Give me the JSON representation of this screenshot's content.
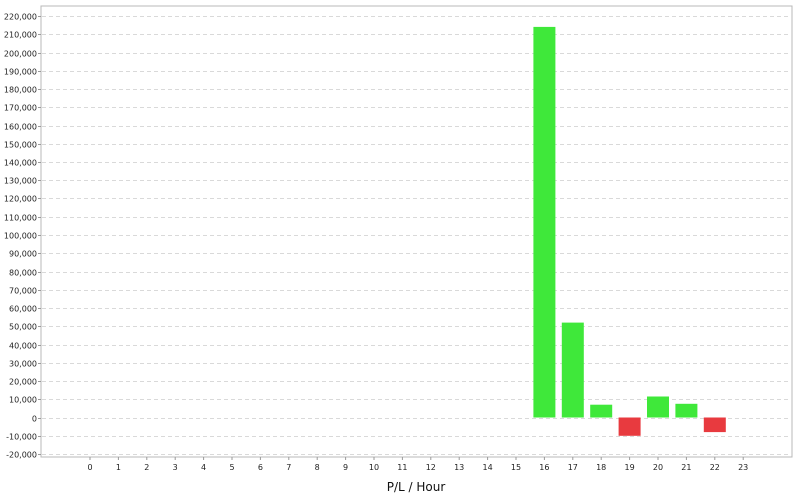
{
  "chart_data": {
    "type": "bar",
    "title": "",
    "xlabel": "P/L / Hour",
    "ylabel": "",
    "categories": [
      "0",
      "1",
      "2",
      "3",
      "4",
      "5",
      "6",
      "7",
      "8",
      "9",
      "10",
      "11",
      "12",
      "13",
      "14",
      "15",
      "16",
      "17",
      "18",
      "19",
      "20",
      "21",
      "22",
      "23"
    ],
    "values": [
      0,
      0,
      0,
      0,
      0,
      0,
      0,
      0,
      0,
      0,
      0,
      0,
      0,
      0,
      0,
      0,
      214000,
      52000,
      7000,
      -10000,
      11500,
      7500,
      -8000,
      0
    ],
    "ylim": [
      -20000,
      220000
    ],
    "yticks": [
      -20000,
      -10000,
      0,
      10000,
      20000,
      30000,
      40000,
      50000,
      60000,
      70000,
      80000,
      90000,
      100000,
      110000,
      120000,
      130000,
      140000,
      150000,
      160000,
      170000,
      180000,
      190000,
      200000,
      210000,
      220000
    ],
    "ytick_labels": [
      "-20,000",
      "-10,000",
      "0",
      "10,000",
      "20,000",
      "30,000",
      "40,000",
      "50,000",
      "60,000",
      "70,000",
      "80,000",
      "90,000",
      "100,000",
      "110,000",
      "120,000",
      "130,000",
      "140,000",
      "150,000",
      "160,000",
      "170,000",
      "180,000",
      "190,000",
      "200,000",
      "210,000",
      "220,000"
    ],
    "grid": true,
    "colors": {
      "positive": "#3fe83a",
      "negative": "#e83a3f"
    }
  }
}
